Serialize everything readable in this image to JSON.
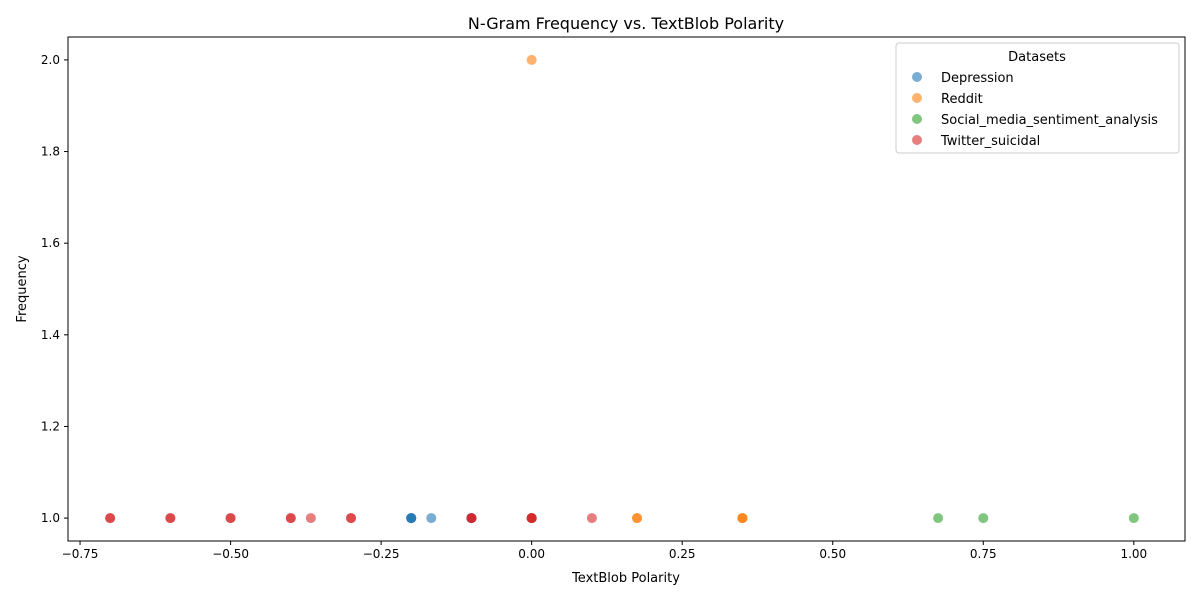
{
  "chart_data": {
    "type": "scatter",
    "title": "N-Gram Frequency vs. TextBlob Polarity",
    "xlabel": "TextBlob Polarity",
    "ylabel": "Frequency",
    "xlim": [
      -0.77,
      1.085
    ],
    "ylim": [
      0.95,
      2.05
    ],
    "xticks": [
      -0.75,
      -0.5,
      -0.25,
      0.0,
      0.25,
      0.5,
      0.75,
      1.0
    ],
    "xtick_labels": [
      "−0.75",
      "−0.50",
      "−0.25",
      "0.00",
      "0.25",
      "0.50",
      "0.75",
      "1.00"
    ],
    "yticks": [
      1.0,
      1.2,
      1.4,
      1.6,
      1.8,
      2.0
    ],
    "ytick_labels": [
      "1.0",
      "1.2",
      "1.4",
      "1.6",
      "1.8",
      "2.0"
    ],
    "grid": false,
    "legend": {
      "title": "Datasets",
      "placement": "top-right"
    },
    "series": [
      {
        "name": "Depression",
        "color": "#1f77b4",
        "points": [
          {
            "x": -0.2,
            "y": 1
          },
          {
            "x": -0.2,
            "y": 1
          },
          {
            "x": -0.2,
            "y": 1
          },
          {
            "x": -0.2,
            "y": 1
          },
          {
            "x": -0.1667,
            "y": 1
          },
          {
            "x": -0.1,
            "y": 1
          },
          {
            "x": -0.1,
            "y": 1
          },
          {
            "x": 0.0,
            "y": 1
          },
          {
            "x": 0.0,
            "y": 1
          }
        ]
      },
      {
        "name": "Reddit",
        "color": "#ff7f0e",
        "points": [
          {
            "x": 0.0,
            "y": 2
          },
          {
            "x": 0.0,
            "y": 1
          },
          {
            "x": 0.175,
            "y": 1
          },
          {
            "x": 0.175,
            "y": 1
          },
          {
            "x": 0.35,
            "y": 1
          },
          {
            "x": 0.35,
            "y": 1
          },
          {
            "x": 0.35,
            "y": 1
          }
        ]
      },
      {
        "name": "Social_media_sentiment_analysis",
        "color": "#2ca02c",
        "points": [
          {
            "x": 0.675,
            "y": 1
          },
          {
            "x": 0.75,
            "y": 1
          },
          {
            "x": 1.0,
            "y": 1
          }
        ]
      },
      {
        "name": "Twitter_suicidal",
        "color": "#d62728",
        "points": [
          {
            "x": -0.7,
            "y": 1
          },
          {
            "x": -0.7,
            "y": 1
          },
          {
            "x": -0.6,
            "y": 1
          },
          {
            "x": -0.6,
            "y": 1
          },
          {
            "x": -0.5,
            "y": 1
          },
          {
            "x": -0.5,
            "y": 1
          },
          {
            "x": -0.4,
            "y": 1
          },
          {
            "x": -0.4,
            "y": 1
          },
          {
            "x": -0.3667,
            "y": 1
          },
          {
            "x": -0.3,
            "y": 1
          },
          {
            "x": -0.3,
            "y": 1
          },
          {
            "x": -0.1,
            "y": 1
          },
          {
            "x": -0.1,
            "y": 1
          },
          {
            "x": -0.1,
            "y": 1
          },
          {
            "x": 0.0,
            "y": 1
          },
          {
            "x": 0.0,
            "y": 1
          },
          {
            "x": 0.0,
            "y": 1
          },
          {
            "x": 0.1,
            "y": 1
          }
        ]
      }
    ]
  }
}
